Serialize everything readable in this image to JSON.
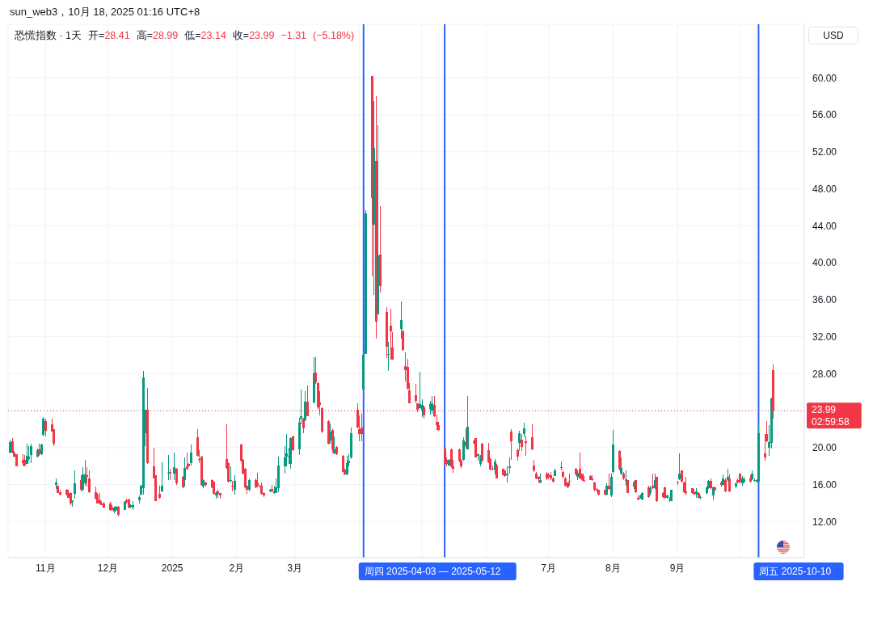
{
  "chart_data": {
    "type": "candlestick",
    "title": "恐慌指数 · 1天",
    "annotations": [
      "sun_web3，10月 18, 2025 01:16 UTC+8",
      "开=28.41 高=28.99 低=23.14 收=23.99 −1.31 (−5.18%)"
    ],
    "ylabel": "USD",
    "x": [
      "2024-10-15",
      "2024-10-16",
      "2024-10-17",
      "2024-10-18",
      "2024-10-21",
      "2024-10-22",
      "2024-10-23",
      "2024-10-24",
      "2024-10-25",
      "2024-10-28",
      "2024-10-29",
      "2024-10-30",
      "2024-10-31",
      "2024-11-01",
      "2024-11-04",
      "2024-11-05",
      "2024-11-06",
      "2024-11-07",
      "2024-11-08",
      "2024-11-11",
      "2024-11-12",
      "2024-11-13",
      "2024-11-14",
      "2024-11-15",
      "2024-11-18",
      "2024-11-19",
      "2024-11-20",
      "2024-11-21",
      "2024-11-22",
      "2024-11-25",
      "2024-11-26",
      "2024-11-27",
      "2024-11-28",
      "2024-11-29",
      "2024-12-02",
      "2024-12-03",
      "2024-12-04",
      "2024-12-05",
      "2024-12-06",
      "2024-12-09",
      "2024-12-10",
      "2024-12-11",
      "2024-12-12",
      "2024-12-13",
      "2024-12-16",
      "2024-12-17",
      "2024-12-18",
      "2024-12-19",
      "2024-12-20",
      "2024-12-23",
      "2024-12-24",
      "2024-12-26",
      "2024-12-27",
      "2024-12-30",
      "2024-12-31",
      "2025-01-02",
      "2025-01-03",
      "2025-01-06",
      "2025-01-07",
      "2025-01-08",
      "2025-01-09",
      "2025-01-10",
      "2025-01-13",
      "2025-01-14",
      "2025-01-15",
      "2025-01-16",
      "2025-01-17",
      "2025-01-20",
      "2025-01-21",
      "2025-01-22",
      "2025-01-23",
      "2025-01-24",
      "2025-01-27",
      "2025-01-28",
      "2025-01-29",
      "2025-01-30",
      "2025-01-31",
      "2025-02-03",
      "2025-02-04",
      "2025-02-05",
      "2025-02-06",
      "2025-02-07",
      "2025-02-10",
      "2025-02-11",
      "2025-02-12",
      "2025-02-13",
      "2025-02-14",
      "2025-02-17",
      "2025-02-18",
      "2025-02-19",
      "2025-02-20",
      "2025-02-21",
      "2025-02-24",
      "2025-02-25",
      "2025-02-26",
      "2025-02-27",
      "2025-02-28",
      "2025-03-03",
      "2025-03-04",
      "2025-03-05",
      "2025-03-06",
      "2025-03-07",
      "2025-03-10",
      "2025-03-11",
      "2025-03-12",
      "2025-03-13",
      "2025-03-14",
      "2025-03-17",
      "2025-03-18",
      "2025-03-19",
      "2025-03-20",
      "2025-03-21",
      "2025-03-24",
      "2025-03-25",
      "2025-03-26",
      "2025-03-27",
      "2025-03-28",
      "2025-03-31",
      "2025-04-01",
      "2025-04-02",
      "2025-04-03",
      "2025-04-04",
      "2025-04-07",
      "2025-04-08",
      "2025-04-09",
      "2025-04-10",
      "2025-04-11",
      "2025-04-14",
      "2025-04-15",
      "2025-04-16",
      "2025-04-17",
      "2025-04-21",
      "2025-04-22",
      "2025-04-23",
      "2025-04-24",
      "2025-04-25",
      "2025-04-28",
      "2025-04-29",
      "2025-04-30",
      "2025-05-01",
      "2025-05-02",
      "2025-05-05",
      "2025-05-06",
      "2025-05-07",
      "2025-05-08",
      "2025-05-09",
      "2025-05-12",
      "2025-05-13",
      "2025-05-14",
      "2025-05-15",
      "2025-05-16",
      "2025-05-19",
      "2025-05-20",
      "2025-05-21",
      "2025-05-22",
      "2025-05-23",
      "2025-05-26",
      "2025-05-27",
      "2025-05-28",
      "2025-05-29",
      "2025-05-30",
      "2025-06-02",
      "2025-06-03",
      "2025-06-04",
      "2025-06-05",
      "2025-06-06",
      "2025-06-09",
      "2025-06-10",
      "2025-06-11",
      "2025-06-12",
      "2025-06-13",
      "2025-06-16",
      "2025-06-17",
      "2025-06-18",
      "2025-06-19",
      "2025-06-20",
      "2025-06-23",
      "2025-06-24",
      "2025-06-25",
      "2025-06-26",
      "2025-06-27",
      "2025-06-30",
      "2025-07-01",
      "2025-07-02",
      "2025-07-03",
      "2025-07-04",
      "2025-07-07",
      "2025-07-08",
      "2025-07-09",
      "2025-07-10",
      "2025-07-11",
      "2025-07-14",
      "2025-07-15",
      "2025-07-16",
      "2025-07-17",
      "2025-07-18",
      "2025-07-21",
      "2025-07-22",
      "2025-07-23",
      "2025-07-24",
      "2025-07-25",
      "2025-07-28",
      "2025-07-29",
      "2025-07-30",
      "2025-07-31",
      "2025-08-01",
      "2025-08-04",
      "2025-08-05",
      "2025-08-06",
      "2025-08-07",
      "2025-08-08",
      "2025-08-11",
      "2025-08-12",
      "2025-08-13",
      "2025-08-14",
      "2025-08-15",
      "2025-08-18",
      "2025-08-19",
      "2025-08-20",
      "2025-08-21",
      "2025-08-22",
      "2025-08-25",
      "2025-08-26",
      "2025-08-27",
      "2025-08-28",
      "2025-08-29",
      "2025-09-01",
      "2025-09-02",
      "2025-09-03",
      "2025-09-04",
      "2025-09-05",
      "2025-09-08",
      "2025-09-09",
      "2025-09-10",
      "2025-09-11",
      "2025-09-12",
      "2025-09-15",
      "2025-09-16",
      "2025-09-17",
      "2025-09-18",
      "2025-09-19",
      "2025-09-22",
      "2025-09-23",
      "2025-09-24",
      "2025-09-25",
      "2025-09-26",
      "2025-09-29",
      "2025-09-30",
      "2025-10-01",
      "2025-10-02",
      "2025-10-03",
      "2025-10-06",
      "2025-10-07",
      "2025-10-08",
      "2025-10-09",
      "2025-10-10",
      "2025-10-13",
      "2025-10-14",
      "2025-10-15",
      "2025-10-16",
      "2025-10-17"
    ],
    "ohlc": [
      [
        19.5,
        20.9,
        19.4,
        20.6
      ],
      [
        20.7,
        21.0,
        19.4,
        19.5
      ],
      [
        19.5,
        19.6,
        18.9,
        19.0
      ],
      [
        19.3,
        19.3,
        18.0,
        18.0
      ],
      [
        18.7,
        19.3,
        18.0,
        18.3
      ],
      [
        18.7,
        19.2,
        18.0,
        18.1
      ],
      [
        18.2,
        20.4,
        18.2,
        19.1
      ],
      [
        18.8,
        20.2,
        18.6,
        19.0
      ],
      [
        19.2,
        20.4,
        18.3,
        20.2
      ],
      [
        19.0,
        19.9,
        18.9,
        19.7
      ],
      [
        19.8,
        20.4,
        19.1,
        19.3
      ],
      [
        19.3,
        20.4,
        19.2,
        20.3
      ],
      [
        21.4,
        23.3,
        21.2,
        23.1
      ],
      [
        22.9,
        23.1,
        21.2,
        21.8
      ],
      [
        22.5,
        23.1,
        21.7,
        21.7
      ],
      [
        22.0,
        22.0,
        20.2,
        20.4
      ],
      [
        16.0,
        16.7,
        15.5,
        16.2
      ],
      [
        15.9,
        15.9,
        15.1,
        15.1
      ],
      [
        15.2,
        15.4,
        14.8,
        14.9
      ],
      [
        15.4,
        15.5,
        14.8,
        14.9
      ],
      [
        15.1,
        15.4,
        14.6,
        14.6
      ],
      [
        15.1,
        15.2,
        13.8,
        14.0
      ],
      [
        14.1,
        14.3,
        13.6,
        14.3
      ],
      [
        15.0,
        17.5,
        14.5,
        16.1
      ],
      [
        16.5,
        17.0,
        15.3,
        15.4
      ],
      [
        15.4,
        17.9,
        15.3,
        17.1
      ],
      [
        16.1,
        18.7,
        15.9,
        17.1
      ],
      [
        17.0,
        17.9,
        15.8,
        16.8
      ],
      [
        16.7,
        17.5,
        15.1,
        15.2
      ],
      [
        15.2,
        15.8,
        14.4,
        14.5
      ],
      [
        14.9,
        15.1,
        14.0,
        14.0
      ],
      [
        14.3,
        15.1,
        13.9,
        14.0
      ],
      [
        14.0,
        14.2,
        13.8,
        13.8
      ],
      [
        14.0,
        14.1,
        13.4,
        13.5
      ],
      [
        14.0,
        14.1,
        13.2,
        13.3
      ],
      [
        13.5,
        13.8,
        13.2,
        13.3
      ],
      [
        13.1,
        13.6,
        12.9,
        13.5
      ],
      [
        13.3,
        13.7,
        13.2,
        13.6
      ],
      [
        13.6,
        13.7,
        12.6,
        12.7
      ],
      [
        13.3,
        14.2,
        13.3,
        14.1
      ],
      [
        14.3,
        14.5,
        14.0,
        14.1
      ],
      [
        14.4,
        14.5,
        13.4,
        13.5
      ],
      [
        13.6,
        13.9,
        13.4,
        13.8
      ],
      [
        13.5,
        14.2,
        13.3,
        13.8
      ],
      [
        14.3,
        14.8,
        14.0,
        14.7
      ],
      [
        14.9,
        16.0,
        14.8,
        15.9
      ],
      [
        15.6,
        28.3,
        14.9,
        27.6
      ],
      [
        21.6,
        24.1,
        20.2,
        24.1
      ],
      [
        24.1,
        26.5,
        18.2,
        18.3
      ],
      [
        18.0,
        20.0,
        16.7,
        16.7
      ],
      [
        17.0,
        17.0,
        14.2,
        14.2
      ],
      [
        15.0,
        15.9,
        14.5,
        14.6
      ],
      [
        15.3,
        18.4,
        15.2,
        15.9
      ],
      [
        17.2,
        19.2,
        16.5,
        17.3
      ],
      [
        17.4,
        17.7,
        16.5,
        17.2
      ],
      [
        17.2,
        19.5,
        16.5,
        17.9
      ],
      [
        17.7,
        17.8,
        16.0,
        16.1
      ],
      [
        16.8,
        16.9,
        15.6,
        15.7
      ],
      [
        16.5,
        18.9,
        15.8,
        17.8
      ],
      [
        18.0,
        19.5,
        17.5,
        17.7
      ],
      [
        18.2,
        18.3,
        18.0,
        18.0
      ],
      [
        18.3,
        20.3,
        18.1,
        19.5
      ],
      [
        21.1,
        22.0,
        19.0,
        19.1
      ],
      [
        18.8,
        19.7,
        18.3,
        18.7
      ],
      [
        19.0,
        19.1,
        15.9,
        16.0
      ],
      [
        15.8,
        16.6,
        15.6,
        16.5
      ],
      [
        16.2,
        16.3,
        15.8,
        16.0
      ],
      [
        16.5,
        16.6,
        15.6,
        15.7
      ],
      [
        16.3,
        16.3,
        14.9,
        15.0
      ],
      [
        14.8,
        15.3,
        14.5,
        15.1
      ],
      [
        15.3,
        15.4,
        14.6,
        15.0
      ],
      [
        15.1,
        15.1,
        14.5,
        14.8
      ],
      [
        18.8,
        22.5,
        17.7,
        17.8
      ],
      [
        18.3,
        18.4,
        16.2,
        16.3
      ],
      [
        16.4,
        18.0,
        16.2,
        16.5
      ],
      [
        15.9,
        16.4,
        15.3,
        15.8
      ],
      [
        15.4,
        17.0,
        14.9,
        16.4
      ],
      [
        20.3,
        20.4,
        18.5,
        18.6
      ],
      [
        18.7,
        18.8,
        17.1,
        17.2
      ],
      [
        17.7,
        17.8,
        15.6,
        15.7
      ],
      [
        15.9,
        15.9,
        15.0,
        15.4
      ],
      [
        15.4,
        16.7,
        15.3,
        16.5
      ],
      [
        16.5,
        16.7,
        15.6,
        15.7
      ],
      [
        16.2,
        17.3,
        15.7,
        15.9
      ],
      [
        15.9,
        16.0,
        15.7,
        15.8
      ],
      [
        15.9,
        16.2,
        14.9,
        15.0
      ],
      [
        15.1,
        15.2,
        14.7,
        14.8
      ],
      [
        15.3,
        15.5,
        15.2,
        15.4
      ],
      [
        15.5,
        16.0,
        15.2,
        15.3
      ],
      [
        15.1,
        15.9,
        15.0,
        15.3
      ],
      [
        15.1,
        16.7,
        15.1,
        15.7
      ],
      [
        15.6,
        19.0,
        15.2,
        18.1
      ],
      [
        18.0,
        20.2,
        17.2,
        18.9
      ],
      [
        19.0,
        21.5,
        18.0,
        19.4
      ],
      [
        19.0,
        20.0,
        18.2,
        19.1
      ],
      [
        18.2,
        21.1,
        17.7,
        21.0
      ],
      [
        21.2,
        21.3,
        19.6,
        19.7
      ],
      [
        19.8,
        23.2,
        19.2,
        22.7
      ],
      [
        23.1,
        26.3,
        22.5,
        23.4
      ],
      [
        23.1,
        23.2,
        21.6,
        22.1
      ],
      [
        23.0,
        26.1,
        22.9,
        25.0
      ],
      [
        25.0,
        26.7,
        23.4,
        23.4
      ],
      [
        24.9,
        29.8,
        24.8,
        28.0
      ],
      [
        28.1,
        29.8,
        26.9,
        27.1
      ],
      [
        27.0,
        27.1,
        24.2,
        24.4
      ],
      [
        24.9,
        26.1,
        23.5,
        24.6
      ],
      [
        24.3,
        24.4,
        21.6,
        21.7
      ],
      [
        22.9,
        23.0,
        20.3,
        20.4
      ],
      [
        20.8,
        22.6,
        20.4,
        21.7
      ],
      [
        21.9,
        22.0,
        19.5,
        19.8
      ],
      [
        19.4,
        21.2,
        19.3,
        19.8
      ],
      [
        20.1,
        20.2,
        19.2,
        19.3
      ],
      [
        19.1,
        19.2,
        17.4,
        17.4
      ],
      [
        17.6,
        17.7,
        17.0,
        17.1
      ],
      [
        17.1,
        19.1,
        17.0,
        18.3
      ],
      [
        18.3,
        19.3,
        18.0,
        18.6
      ],
      [
        18.9,
        22.2,
        18.8,
        21.6
      ],
      [
        24.1,
        24.8,
        22.1,
        22.2
      ],
      [
        22.0,
        23.5,
        20.7,
        21.5
      ],
      [
        22.2,
        23.7,
        20.7,
        21.5
      ],
      [
        26.3,
        30.1,
        25.0,
        30.0
      ],
      [
        30.1,
        45.7,
        30.1,
        45.3
      ],
      [
        60.2,
        60.2,
        38.5,
        47.0
      ],
      [
        44.1,
        57.5,
        36.5,
        52.4
      ],
      [
        51.0,
        58.0,
        31.8,
        33.6
      ],
      [
        34.4,
        54.9,
        34.4,
        40.8
      ],
      [
        40.9,
        46.1,
        36.8,
        37.5
      ],
      [
        34.7,
        35.2,
        29.7,
        30.9
      ],
      [
        30.0,
        31.4,
        28.3,
        30.1
      ],
      [
        33.2,
        35.0,
        29.5,
        32.6
      ],
      [
        30.8,
        32.5,
        29.5,
        29.5
      ],
      [
        32.8,
        35.8,
        31.8,
        33.8
      ],
      [
        32.6,
        32.8,
        30.5,
        30.6
      ],
      [
        28.8,
        30.3,
        27.2,
        28.4
      ],
      [
        28.7,
        29.6,
        26.3,
        26.4
      ],
      [
        26.2,
        27.0,
        24.8,
        24.8
      ],
      [
        25.7,
        26.9,
        24.8,
        25.1
      ],
      [
        24.8,
        24.8,
        23.8,
        24.1
      ],
      [
        24.3,
        28.2,
        24.2,
        24.7
      ],
      [
        24.0,
        25.2,
        23.3,
        24.6
      ],
      [
        24.4,
        24.5,
        23.1,
        23.5
      ],
      [
        24.2,
        25.1,
        23.6,
        24.7
      ],
      [
        24.0,
        25.6,
        23.7,
        24.8
      ],
      [
        24.6,
        25.6,
        23.3,
        23.4
      ],
      [
        22.8,
        23.6,
        21.9,
        22.4
      ],
      [
        22.4,
        22.8,
        21.8,
        21.9
      ],
      [
        19.9,
        20.0,
        18.1,
        18.4
      ],
      [
        18.7,
        18.9,
        18.0,
        18.2
      ],
      [
        18.1,
        18.8,
        18.0,
        18.7
      ],
      [
        19.8,
        19.9,
        17.8,
        18.0
      ],
      [
        18.0,
        18.7,
        17.3,
        17.7
      ],
      [
        19.8,
        19.9,
        18.4,
        18.6
      ],
      [
        18.6,
        18.8,
        17.8,
        18.0
      ],
      [
        18.7,
        21.1,
        18.6,
        20.8
      ],
      [
        20.6,
        22.1,
        19.9,
        20.2
      ],
      [
        19.8,
        25.6,
        19.8,
        22.3
      ],
      [
        20.7,
        20.9,
        20.3,
        20.5
      ],
      [
        21.0,
        21.0,
        18.9,
        18.9
      ],
      [
        19.1,
        19.4,
        18.6,
        19.3
      ],
      [
        18.2,
        19.2,
        18.0,
        19.1
      ],
      [
        20.4,
        20.5,
        18.5,
        18.6
      ],
      [
        19.7,
        20.5,
        18.3,
        18.4
      ],
      [
        18.8,
        18.9,
        17.5,
        17.6
      ],
      [
        17.7,
        18.1,
        17.5,
        17.6
      ],
      [
        17.6,
        18.8,
        17.1,
        18.5
      ],
      [
        18.1,
        18.2,
        16.7,
        16.7
      ],
      [
        17.7,
        17.7,
        17.0,
        17.0
      ],
      [
        17.5,
        17.5,
        16.8,
        16.9
      ],
      [
        17.0,
        18.0,
        16.2,
        17.2
      ],
      [
        17.8,
        18.9,
        17.2,
        18.0
      ],
      [
        21.7,
        22.0,
        18.7,
        20.7
      ],
      [
        19.7,
        19.9,
        18.6,
        19.0
      ],
      [
        20.5,
        21.8,
        19.6,
        21.6
      ],
      [
        20.9,
        21.5,
        19.6,
        20.1
      ],
      [
        21.5,
        22.7,
        21.1,
        22.1
      ],
      [
        20.7,
        21.3,
        19.1,
        20.5
      ],
      [
        21.1,
        22.5,
        19.7,
        19.8
      ],
      [
        18.1,
        18.7,
        17.4,
        17.5
      ],
      [
        17.2,
        17.4,
        16.6,
        16.7
      ],
      [
        16.8,
        16.9,
        16.1,
        16.6
      ],
      [
        16.2,
        17.2,
        16.1,
        16.5
      ],
      [
        17.2,
        17.4,
        16.5,
        16.7
      ],
      [
        17.1,
        17.3,
        16.6,
        16.8
      ],
      [
        17.0,
        17.4,
        16.5,
        16.7
      ],
      [
        16.7,
        16.8,
        16.2,
        16.3
      ],
      [
        16.9,
        17.7,
        16.9,
        17.5
      ],
      [
        17.9,
        18.5,
        17.5,
        17.8
      ],
      [
        17.4,
        17.5,
        16.7,
        16.8
      ],
      [
        16.7,
        16.8,
        15.8,
        15.9
      ],
      [
        16.2,
        16.2,
        15.6,
        15.7
      ],
      [
        16.4,
        17.2,
        15.9,
        16.3
      ],
      [
        17.7,
        17.8,
        17.0,
        17.1
      ],
      [
        16.8,
        17.5,
        16.5,
        17.3
      ],
      [
        17.7,
        19.5,
        16.6,
        16.7
      ],
      [
        17.2,
        17.2,
        16.4,
        16.5
      ],
      [
        16.5,
        16.9,
        16.2,
        16.4
      ],
      [
        16.9,
        17.0,
        16.5,
        16.5
      ],
      [
        16.7,
        17.0,
        16.4,
        16.5
      ],
      [
        16.2,
        16.3,
        15.3,
        15.4
      ],
      [
        15.5,
        15.6,
        15.2,
        15.4
      ],
      [
        15.4,
        15.4,
        14.8,
        14.9
      ],
      [
        15.4,
        15.4,
        14.8,
        14.9
      ],
      [
        14.9,
        16.1,
        14.8,
        15.9
      ],
      [
        15.9,
        17.2,
        15.4,
        15.5
      ],
      [
        14.8,
        17.2,
        14.7,
        16.8
      ],
      [
        17.4,
        21.9,
        17.2,
        20.3
      ],
      [
        19.6,
        19.7,
        17.5,
        17.7
      ],
      [
        17.2,
        18.9,
        17.0,
        17.8
      ],
      [
        17.2,
        17.4,
        16.5,
        16.7
      ],
      [
        16.4,
        17.5,
        15.9,
        16.6
      ],
      [
        16.5,
        16.5,
        15.1,
        15.1
      ],
      [
        15.8,
        16.4,
        15.5,
        16.2
      ],
      [
        16.5,
        16.5,
        15.1,
        15.2
      ],
      [
        14.6,
        14.8,
        14.3,
        14.4
      ],
      [
        14.5,
        14.9,
        14.5,
        14.8
      ],
      [
        14.4,
        15.2,
        14.3,
        15.1
      ],
      [
        15.7,
        15.9,
        14.6,
        14.7
      ],
      [
        15.1,
        15.9,
        14.8,
        15.6
      ],
      [
        15.9,
        17.2,
        15.5,
        15.6
      ],
      [
        15.6,
        17.2,
        15.5,
        16.5
      ],
      [
        16.8,
        16.8,
        14.1,
        14.2
      ],
      [
        15.1,
        15.2,
        14.6,
        14.7
      ],
      [
        15.7,
        15.8,
        14.5,
        14.6
      ],
      [
        14.6,
        14.9,
        14.5,
        14.8
      ],
      [
        14.3,
        14.7,
        14.1,
        14.4
      ],
      [
        14.2,
        15.4,
        14.2,
        15.4
      ],
      [
        16.3,
        16.4,
        16.0,
        16.2
      ],
      [
        16.6,
        19.4,
        16.5,
        17.2
      ],
      [
        17.5,
        17.5,
        16.2,
        16.3
      ],
      [
        16.2,
        16.3,
        15.1,
        15.2
      ],
      [
        15.3,
        16.8,
        14.8,
        15.1
      ],
      [
        15.6,
        15.6,
        15.0,
        15.1
      ],
      [
        15.2,
        15.5,
        14.8,
        15.0
      ],
      [
        14.9,
        15.6,
        14.6,
        15.3
      ],
      [
        15.1,
        15.2,
        14.5,
        14.6
      ],
      [
        14.6,
        14.8,
        14.4,
        14.7
      ],
      [
        15.1,
        15.8,
        14.9,
        15.7
      ],
      [
        15.6,
        16.5,
        15.5,
        16.4
      ],
      [
        16.4,
        16.7,
        15.4,
        15.6
      ],
      [
        14.8,
        15.8,
        14.3,
        15.7
      ],
      [
        15.7,
        15.8,
        15.3,
        15.4
      ],
      [
        16.2,
        16.4,
        15.8,
        16.0
      ],
      [
        16.0,
        17.1,
        15.9,
        16.7
      ],
      [
        16.5,
        16.7,
        15.2,
        15.3
      ],
      [
        16.5,
        17.7,
        16.3,
        16.8
      ],
      [
        16.7,
        17.1,
        15.2,
        15.3
      ],
      [
        15.8,
        16.2,
        15.6,
        16.1
      ],
      [
        16.5,
        16.7,
        16.1,
        16.2
      ],
      [
        17.2,
        17.2,
        16.2,
        16.2
      ],
      [
        16.1,
        16.9,
        15.9,
        16.7
      ],
      [
        16.3,
        16.8,
        16.1,
        16.6
      ],
      [
        16.7,
        17.0,
        16.2,
        16.3
      ],
      [
        16.6,
        17.5,
        16.5,
        17.2
      ],
      [
        16.4,
        16.7,
        16.3,
        16.5
      ],
      [
        16.3,
        16.6,
        16.2,
        16.5
      ],
      [
        16.3,
        22.5,
        16.2,
        21.6
      ],
      [
        19.4,
        21.5,
        18.6,
        18.9
      ],
      [
        21.5,
        22.9,
        20.6,
        20.7
      ],
      [
        20.0,
        22.4,
        19.1,
        20.6
      ],
      [
        20.5,
        25.4,
        19.9,
        25.3
      ],
      [
        28.41,
        28.99,
        23.14,
        23.99
      ]
    ],
    "colors": [
      "#089981",
      "#f23645",
      "#f23645",
      "#f23645",
      "#f23645",
      "#f23645",
      "#089981",
      "#089981",
      "#089981",
      "#089981",
      "#f23645",
      "#089981",
      "#089981",
      "#f23645",
      "#f23645",
      "#f23645",
      "#089981",
      "#f23645",
      "#f23645",
      "#f23645",
      "#f23645",
      "#f23645",
      "#089981",
      "#089981",
      "#f23645",
      "#089981",
      "#089981",
      "#f23645",
      "#f23645",
      "#f23645",
      "#f23645",
      "#f23645",
      "#f23645",
      "#f23645",
      "#f23645",
      "#f23645",
      "#089981",
      "#089981",
      "#f23645",
      "#089981",
      "#f23645",
      "#f23645",
      "#089981",
      "#089981",
      "#089981",
      "#089981",
      "#089981",
      "#089981",
      "#f23645",
      "#f23645",
      "#f23645",
      "#f23645",
      "#089981",
      "#089981",
      "#f23645",
      "#089981",
      "#f23645",
      "#f23645",
      "#089981",
      "#f23645",
      "#f23645",
      "#089981",
      "#f23645",
      "#f23645",
      "#f23645",
      "#089981",
      "#f23645",
      "#f23645",
      "#f23645",
      "#089981",
      "#f23645",
      "#f23645",
      "#f23645",
      "#f23645",
      "#089981",
      "#f23645",
      "#089981",
      "#f23645",
      "#f23645",
      "#f23645",
      "#f23645",
      "#089981",
      "#f23645",
      "#f23645",
      "#f23645",
      "#f23645",
      "#f23645",
      "#089981",
      "#f23645",
      "#089981",
      "#089981",
      "#089981",
      "#089981",
      "#089981",
      "#089981",
      "#089981",
      "#f23645",
      "#089981",
      "#089981",
      "#f23645",
      "#089981",
      "#f23645",
      "#089981",
      "#f23645",
      "#f23645",
      "#f23645",
      "#f23645",
      "#f23645",
      "#089981",
      "#f23645",
      "#089981",
      "#f23645",
      "#f23645",
      "#f23645",
      "#089981",
      "#089981",
      "#089981",
      "#f23645",
      "#f23645",
      "#f23645",
      "#089981",
      "#089981",
      "#f23645",
      "#089981",
      "#f23645",
      "#089981",
      "#f23645",
      "#f23645",
      "#089981",
      "#f23645",
      "#f23645",
      "#089981",
      "#f23645",
      "#f23645",
      "#f23645",
      "#f23645",
      "#f23645",
      "#f23645",
      "#089981",
      "#089981",
      "#f23645",
      "#089981",
      "#089981",
      "#f23645",
      "#f23645",
      "#f23645",
      "#f23645",
      "#f23645",
      "#089981",
      "#f23645",
      "#f23645",
      "#f23645",
      "#f23645",
      "#089981",
      "#f23645",
      "#089981",
      "#f23645",
      "#f23645",
      "#089981",
      "#089981",
      "#f23645",
      "#f23645",
      "#f23645",
      "#f23645",
      "#089981",
      "#f23645",
      "#f23645",
      "#f23645",
      "#089981",
      "#089981",
      "#f23645",
      "#f23645",
      "#089981",
      "#f23645",
      "#089981",
      "#f23645",
      "#f23645",
      "#f23645",
      "#f23645",
      "#f23645",
      "#089981",
      "#f23645",
      "#f23645",
      "#f23645",
      "#f23645",
      "#089981",
      "#f23645",
      "#f23645",
      "#f23645",
      "#f23645",
      "#f23645",
      "#f23645",
      "#089981",
      "#f23645",
      "#f23645",
      "#f23645",
      "#f23645",
      "#f23645",
      "#f23645",
      "#f23645",
      "#f23645",
      "#f23645",
      "#089981",
      "#f23645",
      "#089981",
      "#089981",
      "#f23645",
      "#089981",
      "#f23645",
      "#089981",
      "#f23645",
      "#089981",
      "#f23645",
      "#f23645",
      "#089981",
      "#089981",
      "#f23645",
      "#089981",
      "#f23645",
      "#089981",
      "#f23645",
      "#f23645",
      "#f23645",
      "#089981",
      "#089981",
      "#089981",
      "#f23645",
      "#089981",
      "#f23645",
      "#f23645",
      "#f23645",
      "#f23645",
      "#f23645",
      "#089981",
      "#f23645",
      "#089981",
      "#089981",
      "#089981",
      "#f23645",
      "#089981",
      "#f23645",
      "#f23645",
      "#089981",
      "#f23645",
      "#089981",
      "#f23645",
      "#089981",
      "#f23645",
      "#f23645",
      "#089981",
      "#089981",
      "#f23645",
      "#089981",
      "#089981",
      "#089981",
      "#089981",
      "#f23645",
      "#f23645",
      "#089981",
      "#089981",
      "#f23645"
    ],
    "xlim": [
      "2024-10-14",
      "2025-11-01"
    ],
    "xticks": [
      {
        "value": "2024-11-01",
        "label": "11月"
      },
      {
        "value": "2024-12-01",
        "label": "12月"
      },
      {
        "value": "2025-01-01",
        "label": "2025"
      },
      {
        "value": "2025-02-01",
        "label": "2月"
      },
      {
        "value": "2025-03-01",
        "label": "3月"
      },
      {
        "value": "2025-04-01",
        "label": null
      },
      {
        "value": "2025-05-01",
        "label": null
      },
      {
        "value": "2025-06-01",
        "label": null
      },
      {
        "value": "2025-07-01",
        "label": "7月"
      },
      {
        "value": "2025-08-01",
        "label": "8月"
      },
      {
        "value": "2025-09-01",
        "label": "9月"
      },
      {
        "value": "2025-10-01",
        "label": null
      }
    ],
    "ylim": [
      8.1,
      65.8
    ],
    "yticks": [
      {
        "value": 12,
        "label": "12.00"
      },
      {
        "value": 16,
        "label": "16.00"
      },
      {
        "value": 20,
        "label": "20.00"
      },
      {
        "value": 24,
        "label": null
      },
      {
        "value": 28,
        "label": "28.00"
      },
      {
        "value": 32,
        "label": "32.00"
      },
      {
        "value": 36,
        "label": "36.00"
      },
      {
        "value": 40,
        "label": "40.00"
      },
      {
        "value": 44,
        "label": "44.00"
      },
      {
        "value": 48,
        "label": "48.00"
      },
      {
        "value": 52,
        "label": "52.00"
      },
      {
        "value": 56,
        "label": "56.00"
      },
      {
        "value": 60,
        "label": "60.00"
      }
    ],
    "grid": true,
    "ref_lines": [
      {
        "axis": "x",
        "value": "2025-04-03",
        "label": "周四 2025-04-03 — 2025-05-12",
        "color": "#2962ff"
      },
      {
        "axis": "x",
        "value": "2025-05-12",
        "color": "#2962ff"
      },
      {
        "axis": "x",
        "value": "2025-10-10",
        "label": "周五 2025-10-10",
        "color": "#2962ff"
      },
      {
        "axis": "y",
        "value": 23.99,
        "label": "23.99\n02:59:58",
        "color": "#f23645",
        "line_style": "dotted"
      }
    ]
  }
}
